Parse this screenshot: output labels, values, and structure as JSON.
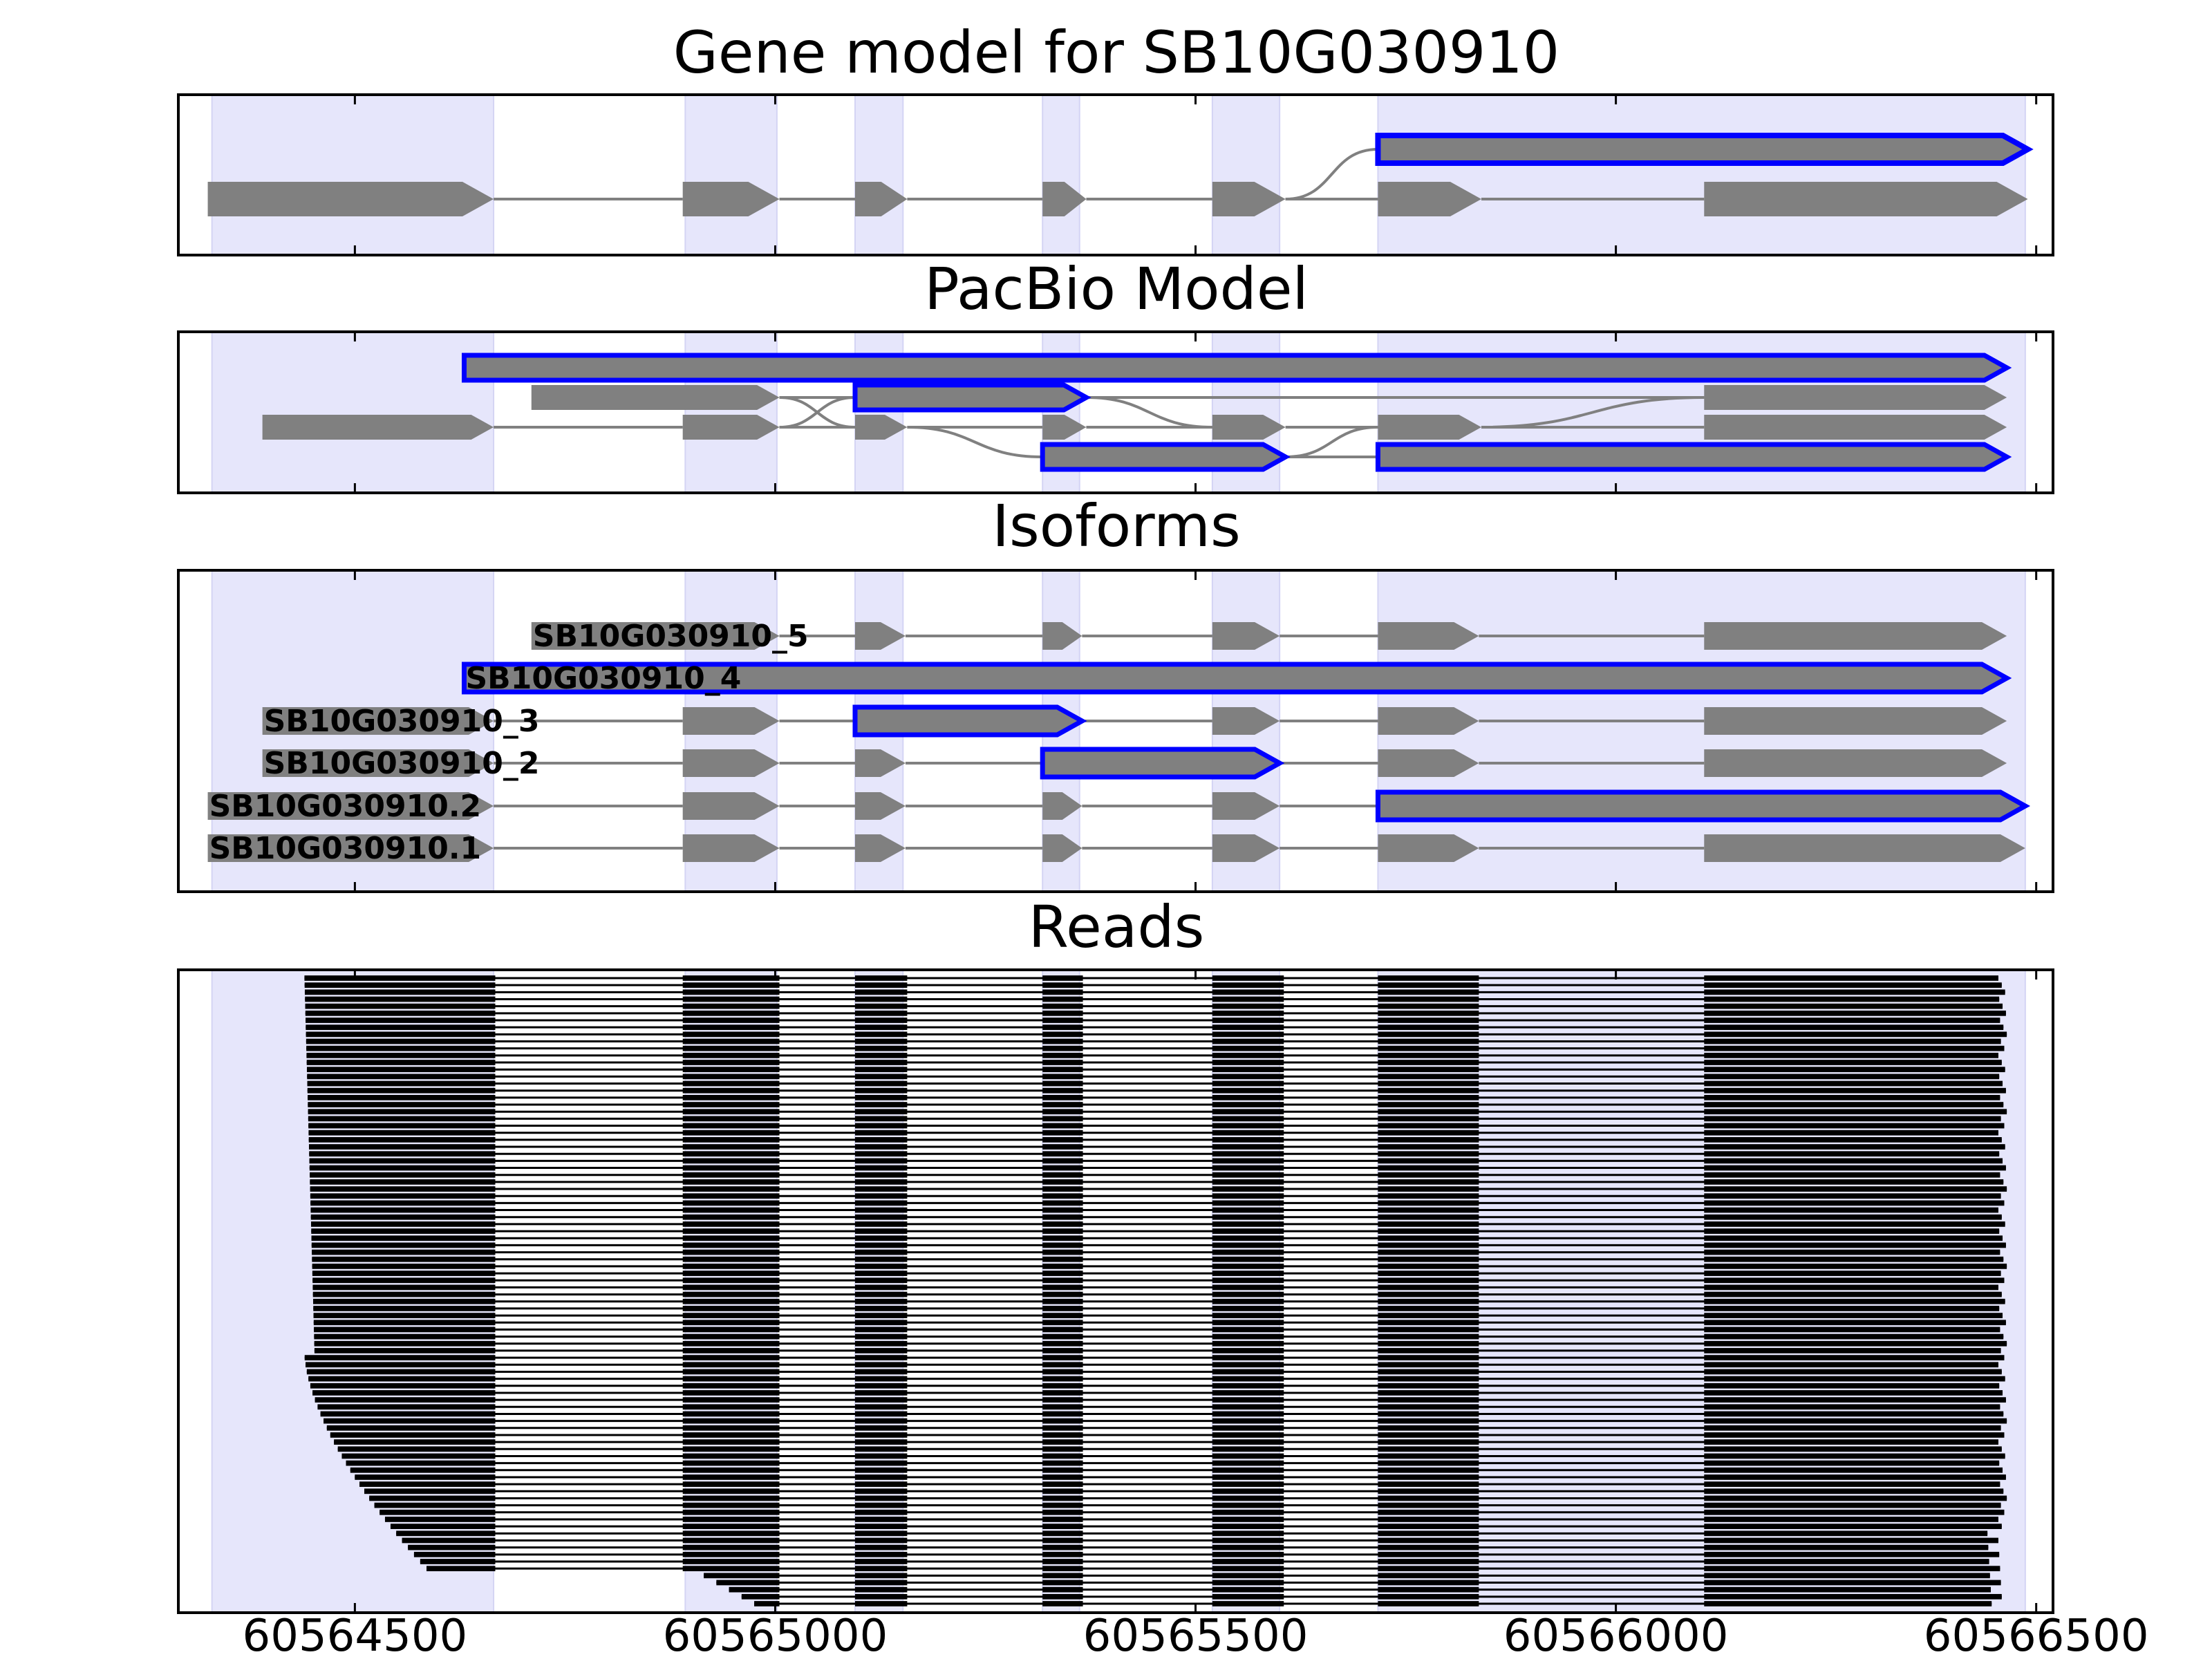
{
  "chart_data": {
    "type": "gene-structure",
    "x_range": [
      60564290,
      60566520
    ],
    "x_ticks": [
      60564500,
      60565000,
      60565500,
      60566000,
      60566500
    ],
    "x_tick_labels": [
      "60564500",
      "60565000",
      "60565500",
      "60566000",
      "60566500"
    ],
    "colors": {
      "exon_fill": "#808080",
      "highlight_outline": "#0000ff",
      "shade": "#e6e6fb",
      "intron_line": "#808080",
      "read": "#000000"
    },
    "shaded_regions": [
      [
        60564330,
        60564665
      ],
      [
        60564893,
        60565002
      ],
      [
        60565095,
        60565152
      ],
      [
        60565318,
        60565362
      ],
      [
        60565520,
        60565600
      ],
      [
        60565717,
        60566487
      ]
    ],
    "panels": [
      {
        "title": "Gene model for SB10G030910",
        "tracks": [
          {
            "lane": 0,
            "label": "",
            "shape": "model",
            "exons": [
              [
                60564325,
                60564665
              ],
              [
                60564890,
                60565005
              ],
              [
                60565095,
                60565157
              ],
              [
                60565318,
                60565370
              ],
              [
                60565520,
                60565607
              ],
              [
                60565717,
                60565840
              ],
              [
                60566105,
                60566490
              ]
            ],
            "highlight": [
              [
                60565717,
                60566490
              ]
            ],
            "branch": [
              60565607,
              60565717
            ]
          }
        ]
      },
      {
        "title": "PacBio Model",
        "tracks": [
          {
            "lane": 0,
            "label": "",
            "exons": [
              [
                60564630,
                60566465
              ]
            ],
            "highlight": [
              [
                60564630,
                60566465
              ]
            ]
          },
          {
            "lane": 1,
            "label": "",
            "exons": [
              [
                60564710,
                60565005
              ],
              [
                60565095,
                60565370
              ],
              [
                60566105,
                60566465
              ]
            ],
            "highlight": [
              [
                60565095,
                60565370
              ]
            ]
          },
          {
            "lane": 2,
            "label": "",
            "exons": [
              [
                60564390,
                60564665
              ],
              [
                60564890,
                60565005
              ],
              [
                60565095,
                60565157
              ],
              [
                60565318,
                60565370
              ],
              [
                60565520,
                60565607
              ],
              [
                60565717,
                60565840
              ],
              [
                60566105,
                60566465
              ]
            ],
            "highlight": []
          },
          {
            "lane": 3,
            "label": "",
            "exons": [
              [
                60565318,
                60565607
              ],
              [
                60565717,
                60566465
              ]
            ],
            "highlight": [
              [
                60565318,
                60565607
              ],
              [
                60565717,
                60566465
              ]
            ]
          }
        ]
      },
      {
        "title": "Isoforms",
        "tracks": [
          {
            "lane": 0,
            "label": "SB10G030910_5",
            "exons": [
              [
                60564710,
                60565005
              ],
              [
                60565095,
                60565155
              ],
              [
                60565318,
                60565365
              ],
              [
                60565520,
                60565600
              ],
              [
                60565717,
                60565837
              ],
              [
                60566105,
                60566465
              ]
            ],
            "highlight": []
          },
          {
            "lane": 1,
            "label": "SB10G030910_4",
            "exons": [
              [
                60564630,
                60566465
              ]
            ],
            "highlight": [
              [
                60564630,
                60566465
              ]
            ]
          },
          {
            "lane": 2,
            "label": "SB10G030910_3",
            "exons": [
              [
                60564390,
                60564665
              ],
              [
                60564890,
                60565005
              ],
              [
                60565095,
                60565365
              ],
              [
                60565520,
                60565600
              ],
              [
                60565717,
                60565837
              ],
              [
                60566105,
                60566465
              ]
            ],
            "highlight": [
              [
                60565095,
                60565365
              ]
            ]
          },
          {
            "lane": 3,
            "label": "SB10G030910_2",
            "exons": [
              [
                60564390,
                60564665
              ],
              [
                60564890,
                60565005
              ],
              [
                60565095,
                60565155
              ],
              [
                60565318,
                60565600
              ],
              [
                60565717,
                60565837
              ],
              [
                60566105,
                60566465
              ]
            ],
            "highlight": [
              [
                60565318,
                60565600
              ]
            ]
          },
          {
            "lane": 4,
            "label": "SB10G030910.2",
            "exons": [
              [
                60564325,
                60564665
              ],
              [
                60564890,
                60565005
              ],
              [
                60565095,
                60565155
              ],
              [
                60565318,
                60565365
              ],
              [
                60565520,
                60565600
              ],
              [
                60565717,
                60566487
              ]
            ],
            "highlight": [
              [
                60565717,
                60566487
              ]
            ]
          },
          {
            "lane": 5,
            "label": "SB10G030910.1",
            "exons": [
              [
                60564325,
                60564665
              ],
              [
                60564890,
                60565005
              ],
              [
                60565095,
                60565155
              ],
              [
                60565318,
                60565365
              ],
              [
                60565520,
                60565600
              ],
              [
                60565717,
                60565837
              ],
              [
                60566105,
                60566487
              ]
            ],
            "highlight": []
          }
        ]
      },
      {
        "title": "Reads",
        "read_count": 90,
        "read_exon_blocks": [
          [
            60564890,
            60565005
          ],
          [
            60565095,
            60565157
          ],
          [
            60565318,
            60565366
          ],
          [
            60565520,
            60565605
          ],
          [
            60565717,
            60565837
          ],
          [
            60566105,
            60566470
          ]
        ]
      }
    ]
  }
}
